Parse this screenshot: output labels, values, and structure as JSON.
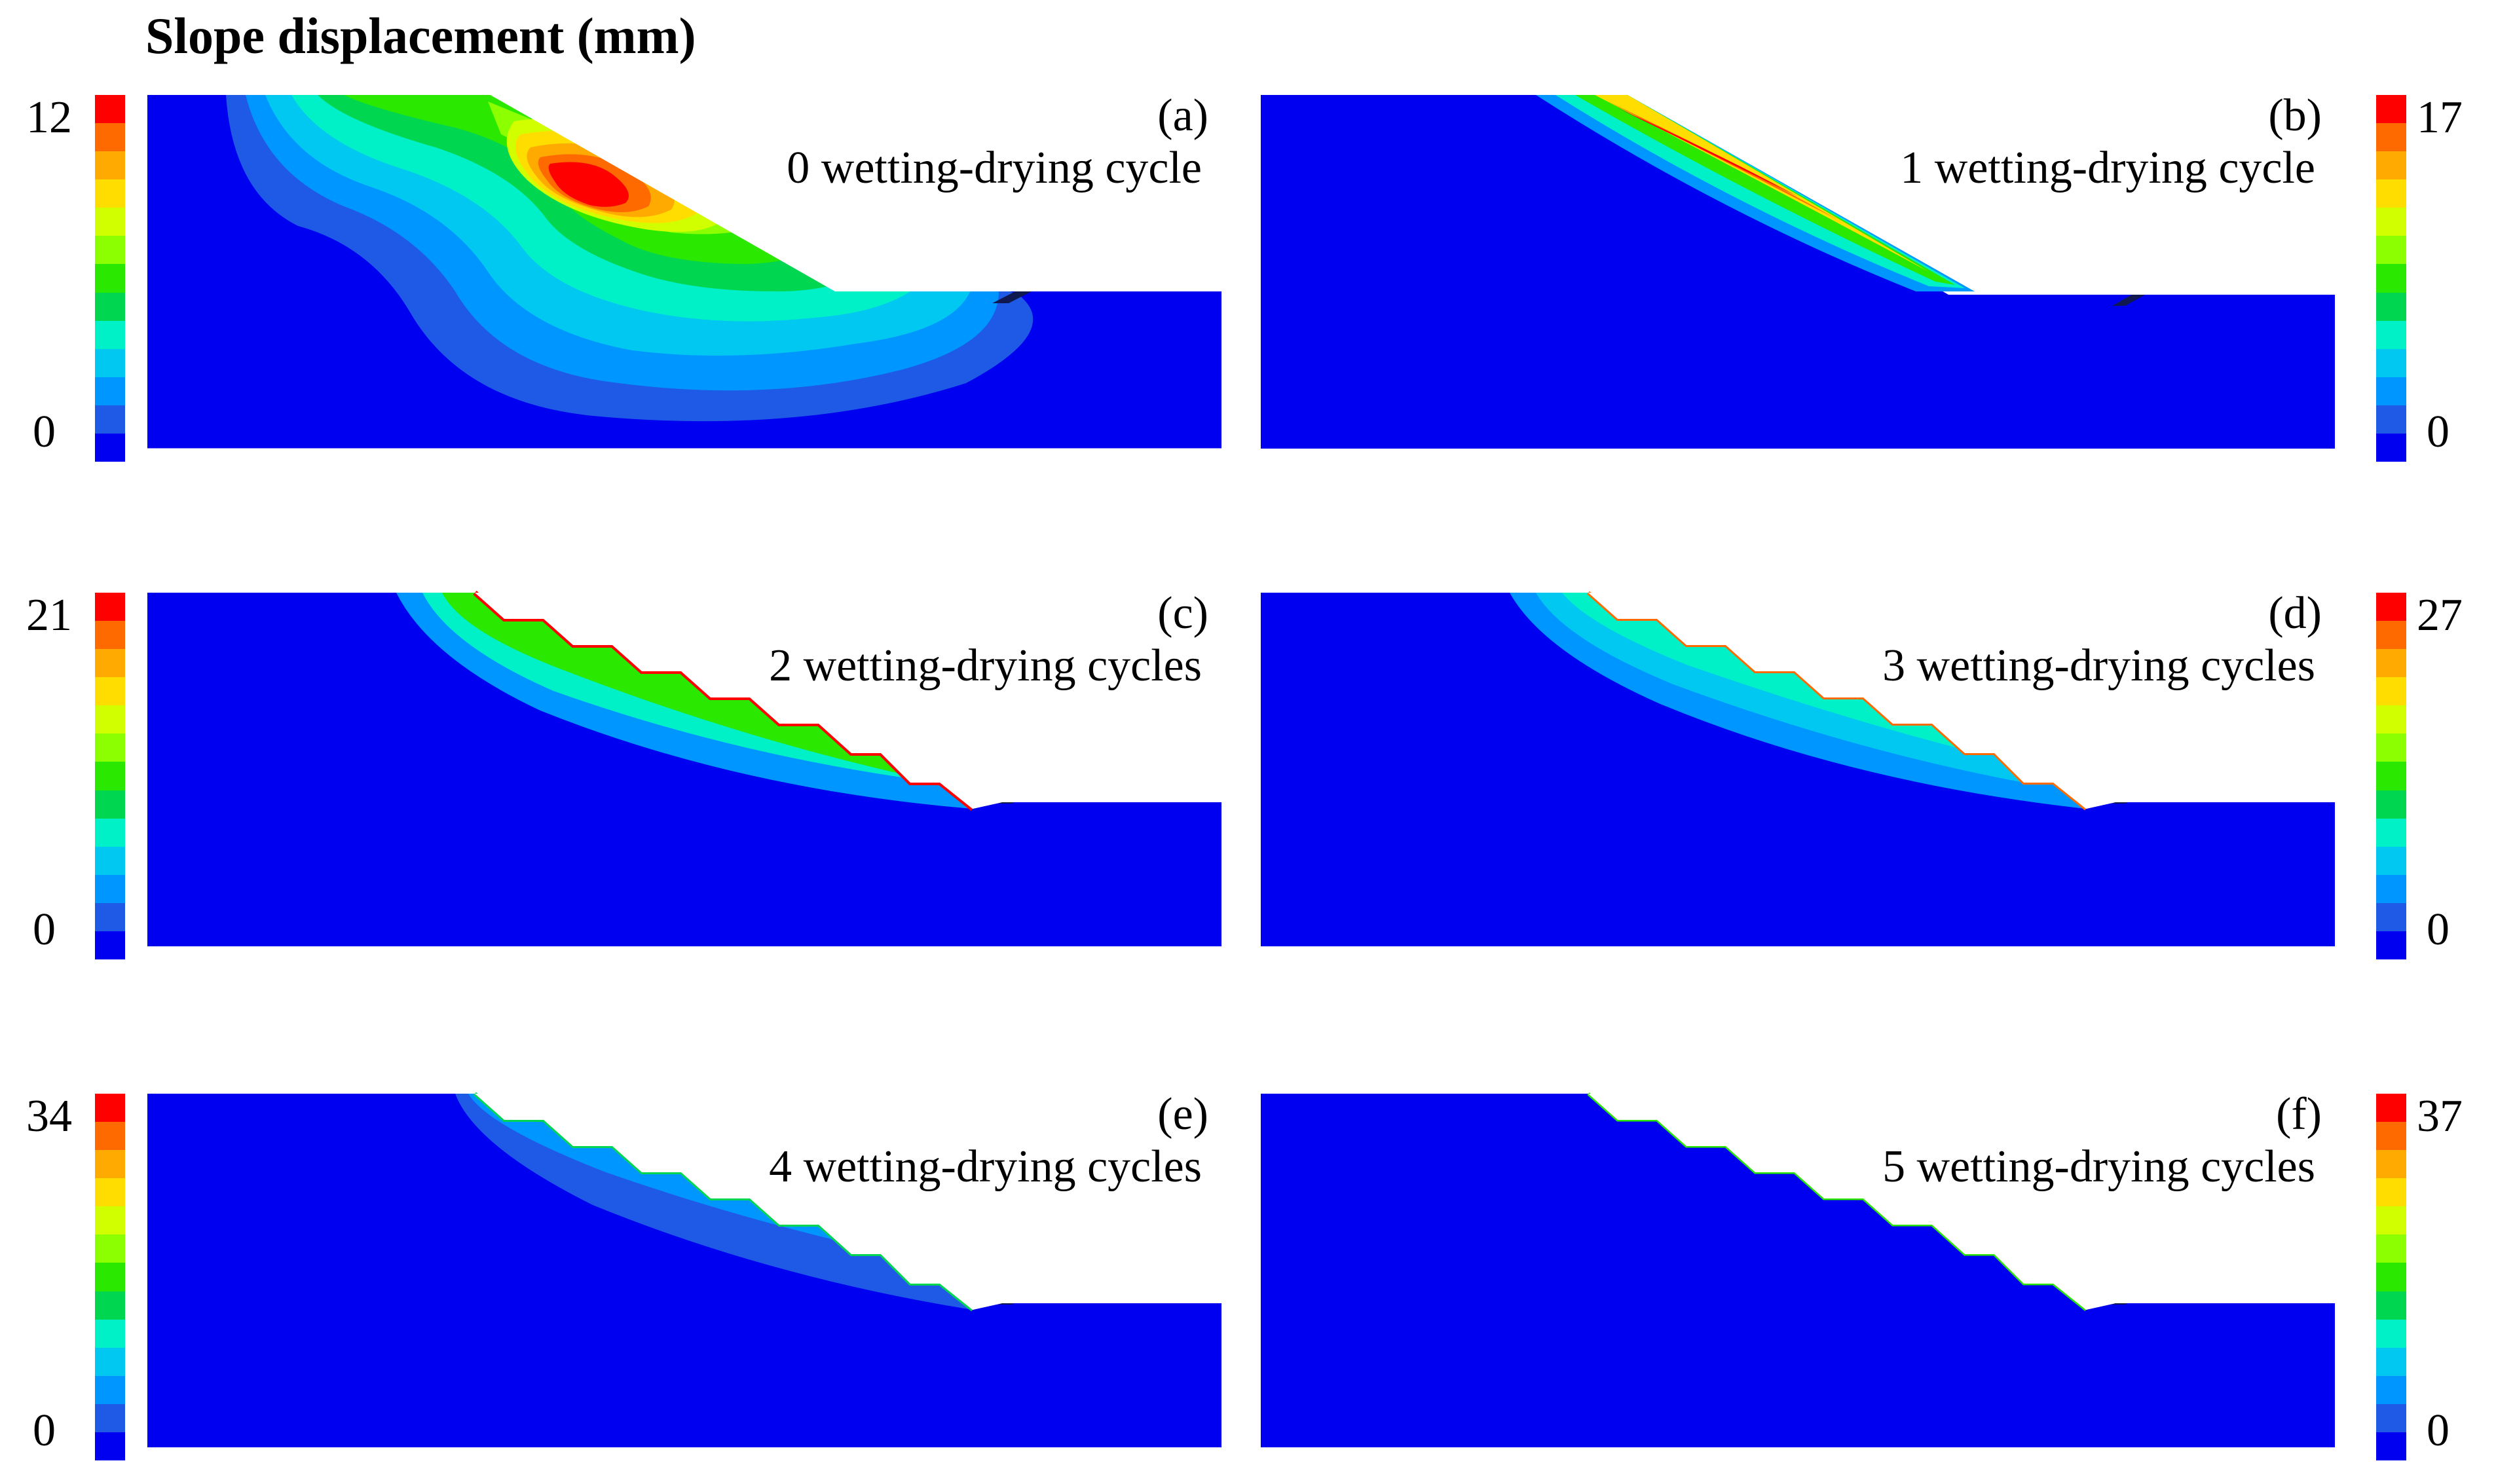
{
  "figure_title": "Slope displacement (mm)",
  "colorbar_colors": [
    "#ff0000",
    "#ff6a00",
    "#ffaa00",
    "#ffdd00",
    "#d2ff00",
    "#8cff00",
    "#2ae800",
    "#00d650",
    "#00f0c8",
    "#00c8f0",
    "#0096ff",
    "#1e5ae6",
    "#0000f0"
  ],
  "background_color": "#0000f0",
  "toe_color": "#101850",
  "panels": [
    {
      "tag": "(a)",
      "caption": "0 wetting-drying cycle",
      "max": "12",
      "min": "0"
    },
    {
      "tag": "(b)",
      "caption": "1 wetting-drying cycle",
      "max": "17",
      "min": "0"
    },
    {
      "tag": "(c)",
      "caption": "2 wetting-drying cycles",
      "max": "21",
      "min": "0"
    },
    {
      "tag": "(d)",
      "caption": "3 wetting-drying cycles",
      "max": "27",
      "min": "0"
    },
    {
      "tag": "(e)",
      "caption": "4 wetting-drying cycles",
      "max": "34",
      "min": "0"
    },
    {
      "tag": "(f)",
      "caption": "5 wetting-drying cycles",
      "max": "37",
      "min": "0"
    }
  ]
}
